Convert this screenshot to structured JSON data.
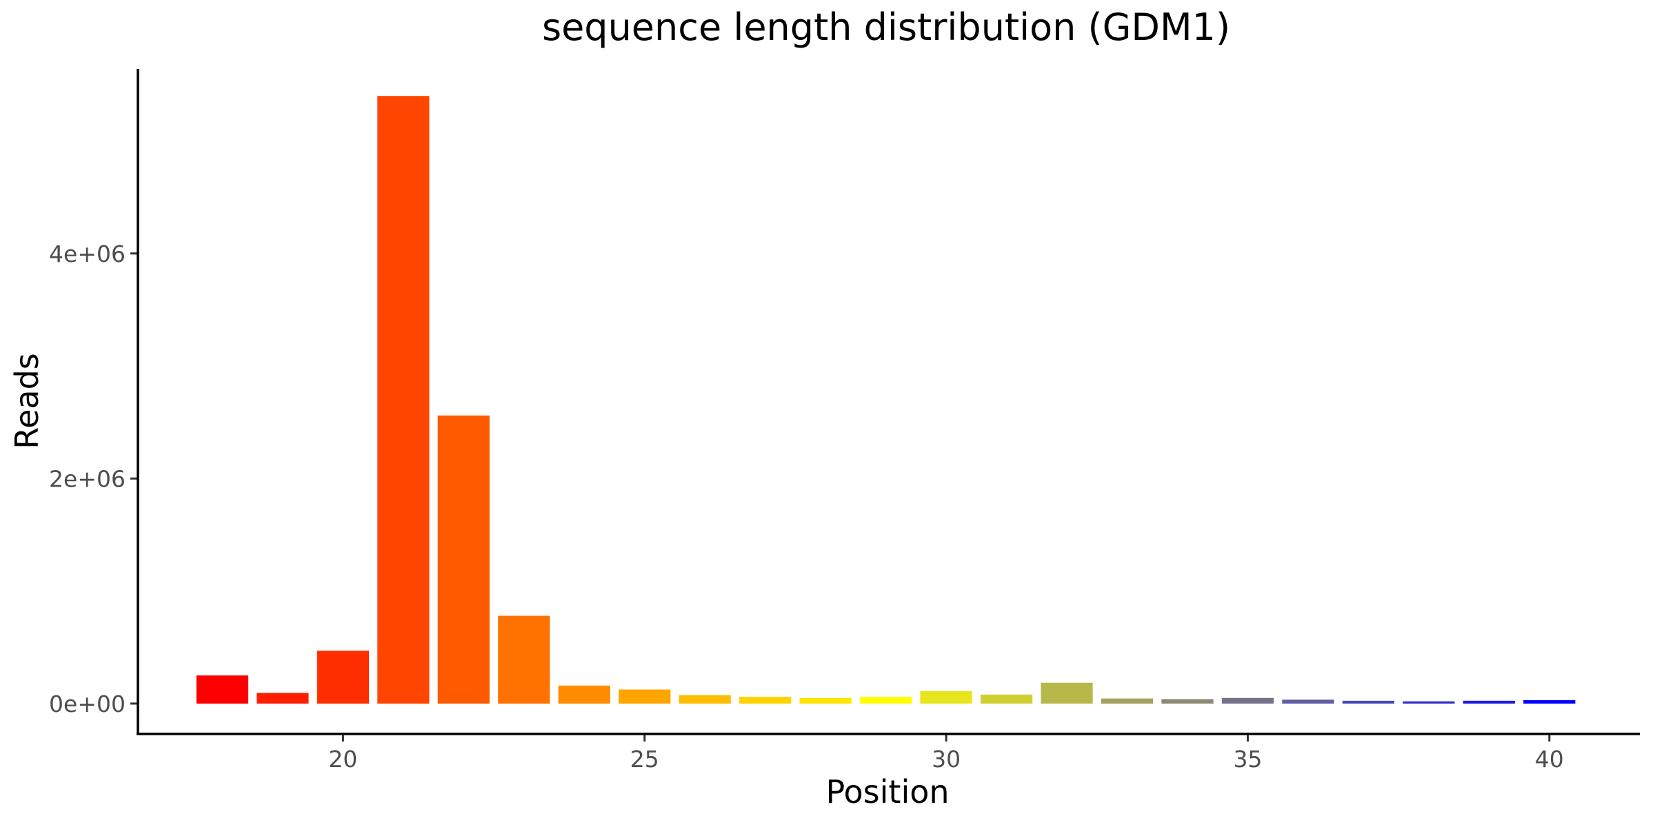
{
  "chart_data": {
    "type": "bar",
    "title": "sequence length distribution (GDM1)",
    "xlabel": "Position",
    "ylabel": "Reads",
    "x": [
      18,
      19,
      20,
      21,
      22,
      23,
      24,
      25,
      26,
      27,
      28,
      29,
      30,
      31,
      32,
      33,
      34,
      35,
      36,
      37,
      38,
      39,
      40
    ],
    "values": [
      250000,
      95000,
      470000,
      5400000,
      2560000,
      780000,
      160000,
      125000,
      75000,
      60000,
      50000,
      60000,
      110000,
      80000,
      185000,
      45000,
      40000,
      50000,
      35000,
      25000,
      20000,
      25000,
      30000
    ],
    "colors": [
      "#ff0000",
      "#ff1e00",
      "#ff2e00",
      "#ff4500",
      "#ff5a00",
      "#ff7200",
      "#ff8c00",
      "#ffa500",
      "#ffbd00",
      "#ffd200",
      "#ffe600",
      "#ffff00",
      "#e6e61a",
      "#d0cf32",
      "#b8b84a",
      "#a3a160",
      "#8c8a76",
      "#75738c",
      "#5f5ea3",
      "#4848b9",
      "#3131cf",
      "#1c1be6",
      "#0000ff"
    ],
    "xlim": [
      16.6,
      41.5
    ],
    "ylim": [
      -270000,
      5640000
    ],
    "xticks": [
      20,
      25,
      30,
      35,
      40
    ],
    "yticks": [
      0,
      2000000,
      4000000
    ],
    "ytick_labels": [
      "0e+00",
      "2e+06",
      "4e+06"
    ],
    "grid": false,
    "legend": "none"
  }
}
